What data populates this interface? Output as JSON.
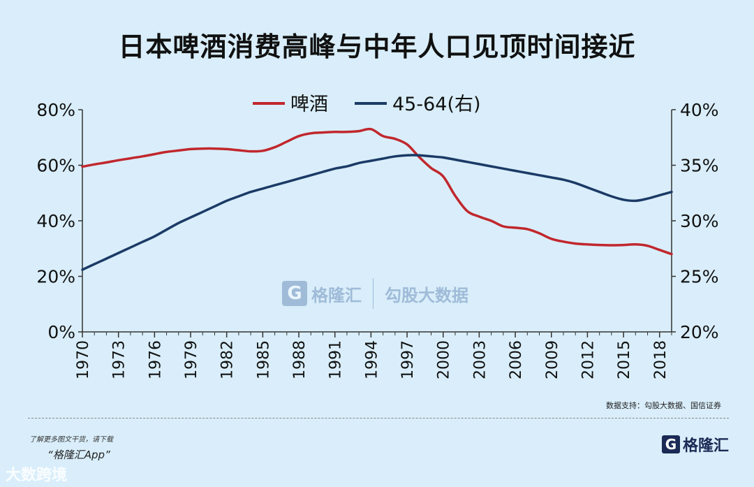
{
  "title": "日本啤酒消费高峰与中年人口见顶时间接近",
  "source": "数据支持：勾股大数据、国信证券",
  "promo": {
    "line": "了解更多图文干货，请下载",
    "app": "“格隆汇App”"
  },
  "logo": {
    "mark": "G",
    "name": "格隆汇"
  },
  "watermark": {
    "brand": "格隆汇",
    "brand2": "勾股大数据",
    "corner": "大数跨境"
  },
  "colors": {
    "background": "#d9eefa",
    "beer": "#c1272d",
    "age": "#1b3a66",
    "axis": "#333333"
  },
  "chart_data": {
    "type": "line",
    "title": "日本啤酒消费高峰与中年人口见顶时间接近",
    "x": [
      1970,
      1971,
      1972,
      1973,
      1974,
      1975,
      1976,
      1977,
      1978,
      1979,
      1980,
      1981,
      1982,
      1983,
      1984,
      1985,
      1986,
      1987,
      1988,
      1989,
      1990,
      1991,
      1992,
      1993,
      1994,
      1995,
      1996,
      1997,
      1998,
      1999,
      2000,
      2001,
      2002,
      2003,
      2004,
      2005,
      2006,
      2007,
      2008,
      2009,
      2010,
      2011,
      2012,
      2013,
      2014,
      2015,
      2016,
      2017,
      2018,
      2019
    ],
    "xticks": [
      1970,
      1973,
      1976,
      1979,
      1982,
      1985,
      1988,
      1991,
      1994,
      1997,
      2000,
      2003,
      2006,
      2009,
      2012,
      2015,
      2018
    ],
    "xlim": [
      1970,
      2019
    ],
    "legend": {
      "placement": "top-center"
    },
    "series": [
      {
        "name": "啤酒",
        "axis": "left",
        "color": "#c1272d",
        "values": [
          59.5,
          60.3,
          61,
          61.8,
          62.5,
          63.2,
          64,
          64.8,
          65.3,
          65.8,
          66,
          66,
          65.8,
          65.4,
          65,
          65.2,
          66.5,
          68.5,
          70.5,
          71.5,
          71.8,
          72,
          72,
          72.3,
          73,
          70.5,
          69.5,
          67.5,
          63,
          59,
          56,
          49,
          43.5,
          41.5,
          40,
          38,
          37.5,
          37,
          35.5,
          33.5,
          32.5,
          31.8,
          31.5,
          31.3,
          31.2,
          31.3,
          31.5,
          31,
          29.5,
          28
        ]
      },
      {
        "name": "45-64(右)",
        "axis": "right",
        "color": "#1b3a66",
        "values": [
          25.6,
          26.1,
          26.6,
          27.1,
          27.6,
          28.1,
          28.6,
          29.2,
          29.8,
          30.3,
          30.8,
          31.3,
          31.8,
          32.2,
          32.6,
          32.9,
          33.2,
          33.5,
          33.8,
          34.1,
          34.4,
          34.7,
          34.9,
          35.2,
          35.4,
          35.6,
          35.8,
          35.9,
          35.9,
          35.8,
          35.7,
          35.5,
          35.3,
          35.1,
          34.9,
          34.7,
          34.5,
          34.3,
          34.1,
          33.9,
          33.7,
          33.4,
          33.0,
          32.6,
          32.2,
          31.9,
          31.8,
          32.0,
          32.3,
          32.6
        ]
      }
    ],
    "y_left": {
      "min": 0,
      "max": 80,
      "ticks": [
        0,
        20,
        40,
        60,
        80
      ],
      "format": "percent"
    },
    "y_right": {
      "min": 20,
      "max": 40,
      "ticks": [
        20,
        25,
        30,
        35,
        40
      ],
      "format": "percent"
    },
    "ytick_labels_left": [
      "0%",
      "20%",
      "40%",
      "60%",
      "80%"
    ],
    "ytick_labels_right": [
      "20%",
      "25%",
      "30%",
      "35%",
      "40%"
    ]
  }
}
